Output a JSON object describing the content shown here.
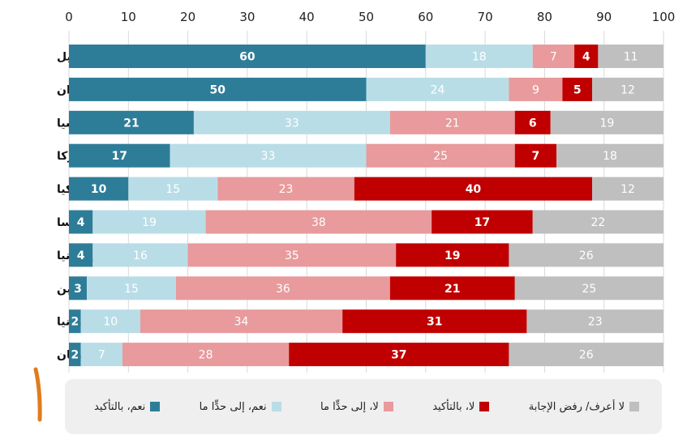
{
  "chart_data": {
    "type": "bar",
    "orientation": "horizontal",
    "stacked": true,
    "title": "",
    "xlabel": "",
    "ylabel": "",
    "xlim": [
      0,
      100
    ],
    "x_ticks": [
      "0",
      "10",
      "20",
      "30",
      "40",
      "50",
      "60",
      "70",
      "80",
      "90",
      "100"
    ],
    "grid": true,
    "legend_position": "bottom",
    "categories": [
      "إسرائيل",
      "إيران",
      "روسيا",
      "أميركا",
      "تركيا",
      "فرنسا",
      "بريطانيا",
      "الصين",
      "ألمانيا",
      "اليابان"
    ],
    "series": [
      {
        "name": "نعم، بالتأكيد",
        "color": "#2e7d98",
        "label_color": "#ffffff",
        "values": [
          60,
          50,
          21,
          17,
          10,
          4,
          4,
          3,
          2,
          2
        ]
      },
      {
        "name": "نعم، إلى حدٍّا ما",
        "color": "#b9dde7",
        "label_color": "#ffffff",
        "values": [
          18,
          24,
          33,
          33,
          15,
          19,
          16,
          15,
          10,
          7
        ]
      },
      {
        "name": "لا، إلى حدٍّا ما",
        "color": "#e89a9c",
        "label_color": "#ffffff",
        "values": [
          7,
          9,
          21,
          25,
          23,
          38,
          35,
          36,
          34,
          28
        ]
      },
      {
        "name": "لا، بالتأكيد",
        "color": "#c00000",
        "label_color": "#ffffff",
        "values": [
          4,
          5,
          6,
          7,
          40,
          17,
          19,
          21,
          31,
          37
        ]
      },
      {
        "name": "لا أعرف/ رفض الإجابة",
        "color": "#bfbfbf",
        "label_color": "#ffffff",
        "values": [
          11,
          12,
          19,
          18,
          12,
          22,
          26,
          25,
          23,
          26
        ]
      }
    ]
  },
  "legend": {
    "items": [
      {
        "label": "نعم، بالتأكيد",
        "color": "#2e7d98"
      },
      {
        "label": "نعم، إلى حدٍّا ما",
        "color": "#b9dde7"
      },
      {
        "label": "لا، إلى حدٍّا ما",
        "color": "#e89a9c"
      },
      {
        "label": "لا، بالتأكيد",
        "color": "#c00000"
      },
      {
        "label": "لا أعرف/ رفض الإجابة",
        "color": "#bfbfbf"
      }
    ]
  },
  "accent_color": "#e07b1f"
}
